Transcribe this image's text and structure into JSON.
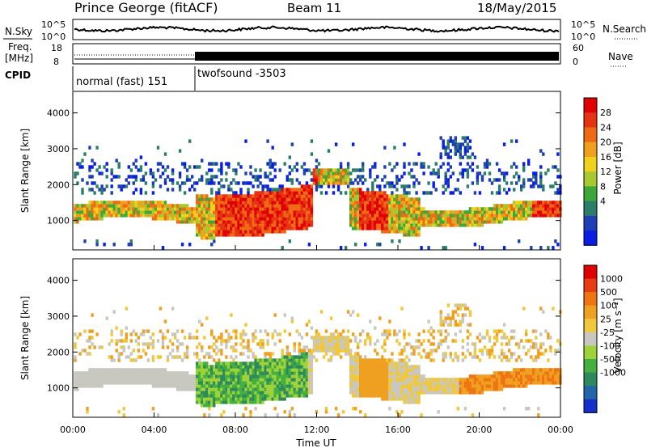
{
  "header": {
    "title": "Prince George (fitACF)",
    "beam": "Beam 11",
    "date": "18/May/2015"
  },
  "top_panels": {
    "nsky_label": "N.Sky",
    "nsearch_label": "N.Search",
    "nave_label": "Nave",
    "freq_label_line1": "Freq.",
    "freq_label_line2": "[MHz]",
    "cpid_label": "CPID",
    "noise_ticks_left": [
      "10^5",
      "10^0"
    ],
    "noise_ticks_right": [
      "10^5",
      "10^0"
    ],
    "freq_ticks": [
      "18",
      "8"
    ],
    "nave_ticks": [
      "60",
      "0"
    ],
    "modes": [
      {
        "name": "normal (fast) 151",
        "start": 0,
        "end": 6
      },
      {
        "name": "twofsound -3503",
        "start": 6,
        "end": 24
      }
    ]
  },
  "chart_data": [
    {
      "type": "heatmap",
      "panel": "power",
      "ylabel": "Slant Range [km]",
      "yticks": [
        1000,
        2000,
        3000,
        4000
      ],
      "ylim": [
        180,
        4600
      ],
      "xlim": [
        0,
        24
      ],
      "colorbar": {
        "label": "Power [dB]",
        "ticks": [
          "28",
          "24",
          "20",
          "16",
          "12",
          "8",
          "4"
        ],
        "colors": [
          "#0a1ee6",
          "#1f3fb4",
          "#2c7d6b",
          "#3ca83a",
          "#a8c832",
          "#f0d21e",
          "#f0a01e",
          "#ee6a14",
          "#e83214",
          "#e00000"
        ]
      }
    },
    {
      "type": "heatmap",
      "panel": "velocity",
      "ylabel": "Slant Range [km]",
      "xlabel": "Time UT",
      "yticks": [
        1000,
        2000,
        3000,
        4000
      ],
      "xticks": [
        "00:00",
        "04:00",
        "08:00",
        "12:00",
        "16:00",
        "20:00",
        "00:00"
      ],
      "ylim": [
        180,
        4600
      ],
      "xlim": [
        0,
        24
      ],
      "colorbar": {
        "label": "Velocity [m s⁻¹]",
        "ticks": [
          "1000",
          "500",
          "100",
          "25",
          "-25",
          "-100",
          "-500",
          "-1000"
        ],
        "colors": [
          "#1430c8",
          "#2266aa",
          "#2e8a5e",
          "#44b040",
          "#9ed23a",
          "#c8c8c0",
          "#f0c83c",
          "#f0a020",
          "#ef7514",
          "#e83c14",
          "#e00000"
        ]
      }
    }
  ]
}
